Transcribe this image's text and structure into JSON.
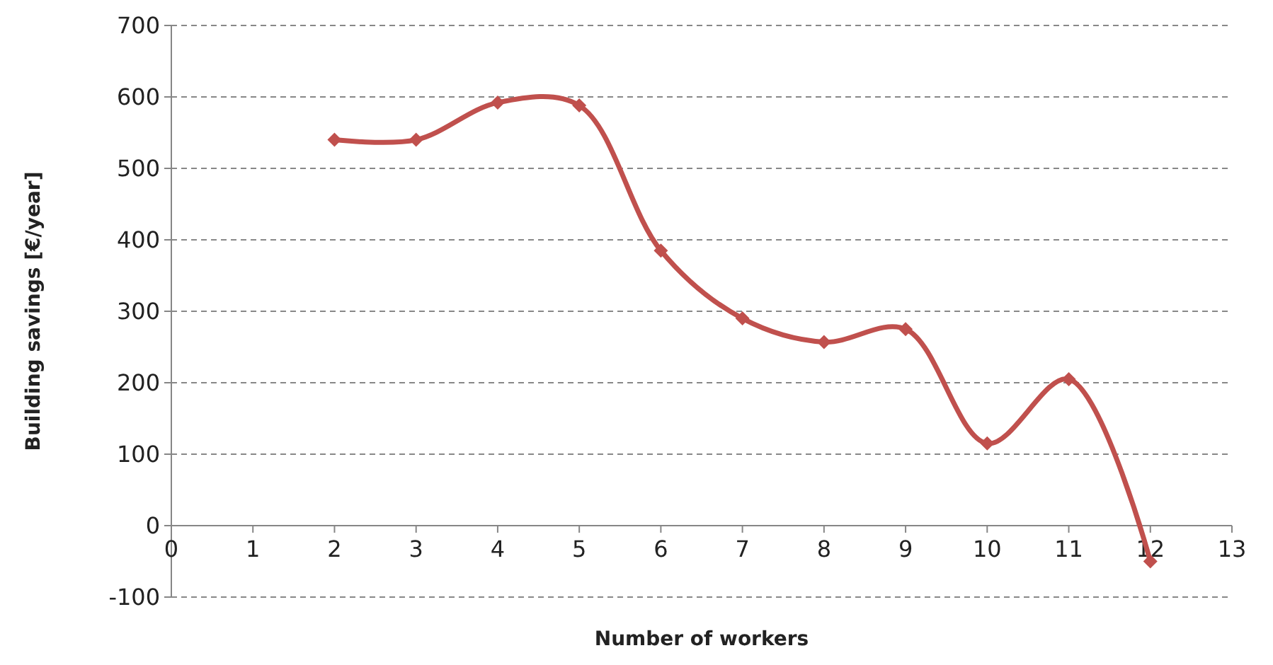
{
  "chart_data": {
    "type": "line",
    "xlabel": "Number of workers",
    "ylabel": "Building savings [€/year]",
    "x": [
      2,
      3,
      4,
      5,
      6,
      7,
      8,
      9,
      10,
      11,
      12
    ],
    "series": [
      {
        "color": "#c0504d",
        "values": [
          540,
          540,
          592,
          588,
          385,
          290,
          257,
          275,
          115,
          205,
          -50
        ]
      }
    ],
    "xlim": [
      0,
      13
    ],
    "xticks": [
      0,
      1,
      2,
      3,
      4,
      5,
      6,
      7,
      8,
      9,
      10,
      11,
      12,
      13
    ],
    "ylim": [
      -100,
      700
    ],
    "yticks": [
      -100,
      0,
      100,
      200,
      300,
      400,
      500,
      600,
      700
    ],
    "grid": "y",
    "marker": "diamond",
    "line_style": "solid"
  }
}
